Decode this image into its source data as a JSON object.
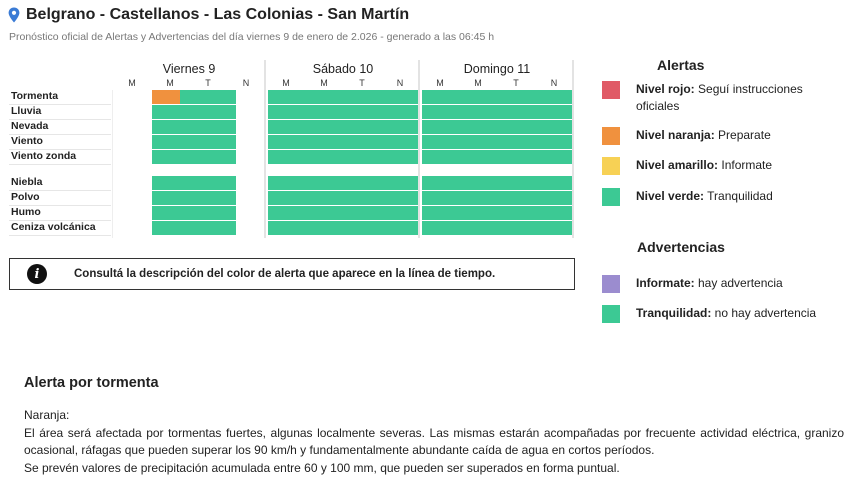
{
  "header": {
    "title": "Belgrano - Castellanos - Las Colonias - San Martín",
    "subtitle": "Pronóstico oficial de Alertas y Advertencias del día viernes 9 de enero de 2.026 - generado a las 06:45 h",
    "icon": "location-pin-icon"
  },
  "timeline": {
    "days": [
      {
        "label": "Viernes 9",
        "slots": [
          "M",
          "M",
          "T",
          "N"
        ]
      },
      {
        "label": "Sábado 10",
        "slots": [
          "M",
          "M",
          "T",
          "N"
        ]
      },
      {
        "label": "Domingo 11",
        "slots": [
          "M",
          "M",
          "T",
          "N"
        ]
      }
    ],
    "groups": [
      {
        "rows": [
          {
            "label": "Tormenta",
            "levels": [
              "naranja",
              "verde",
              "verde",
              "verde",
              "verde",
              "verde",
              "verde",
              "verde",
              "verde",
              "verde",
              "verde",
              "verde"
            ]
          },
          {
            "label": "Lluvia",
            "levels": [
              "verde",
              "verde",
              "verde",
              "verde",
              "verde",
              "verde",
              "verde",
              "verde",
              "verde",
              "verde",
              "verde",
              "verde"
            ]
          },
          {
            "label": "Nevada",
            "levels": [
              "verde",
              "verde",
              "verde",
              "verde",
              "verde",
              "verde",
              "verde",
              "verde",
              "verde",
              "verde",
              "verde",
              "verde"
            ]
          },
          {
            "label": "Viento",
            "levels": [
              "verde",
              "verde",
              "verde",
              "verde",
              "verde",
              "verde",
              "verde",
              "verde",
              "verde",
              "verde",
              "verde",
              "verde"
            ]
          },
          {
            "label": "Viento zonda",
            "levels": [
              "verde",
              "verde",
              "verde",
              "verde",
              "verde",
              "verde",
              "verde",
              "verde",
              "verde",
              "verde",
              "verde",
              "verde"
            ]
          }
        ]
      },
      {
        "rows": [
          {
            "label": "Niebla",
            "levels": [
              "verde",
              "verde",
              "verde",
              "verde",
              "verde",
              "verde",
              "verde",
              "verde",
              "verde",
              "verde",
              "verde",
              "verde"
            ]
          },
          {
            "label": "Polvo",
            "levels": [
              "verde",
              "verde",
              "verde",
              "verde",
              "verde",
              "verde",
              "verde",
              "verde",
              "verde",
              "verde",
              "verde",
              "verde"
            ]
          },
          {
            "label": "Humo",
            "levels": [
              "verde",
              "verde",
              "verde",
              "verde",
              "verde",
              "verde",
              "verde",
              "verde",
              "verde",
              "verde",
              "verde",
              "verde"
            ]
          },
          {
            "label": "Ceniza volcánica",
            "levels": [
              "verde",
              "verde",
              "verde",
              "verde",
              "verde",
              "verde",
              "verde",
              "verde",
              "verde",
              "verde",
              "verde",
              "verde"
            ]
          }
        ]
      }
    ]
  },
  "colors": {
    "rojo": "#e05a66",
    "naranja": "#f0913e",
    "amarillo": "#f7d155",
    "verde": "#3cc994",
    "informate": "#9b8ccf"
  },
  "info_box": {
    "icon": "info-icon",
    "text": "Consultá la descripción del color de alerta que aparece en la línea de tiempo."
  },
  "alertas": {
    "title": "Alertas",
    "items": [
      {
        "color": "#e05a66",
        "label": "Nivel rojo:",
        "desc": "Seguí instrucciones oficiales"
      },
      {
        "color": "#f0913e",
        "label": "Nivel naranja:",
        "desc": "Preparate"
      },
      {
        "color": "#f7d155",
        "label": "Nivel amarillo:",
        "desc": "Informate"
      },
      {
        "color": "#3cc994",
        "label": "Nivel verde:",
        "desc": "Tranquilidad"
      }
    ]
  },
  "advertencias": {
    "title": "Advertencias",
    "items": [
      {
        "color": "#9b8ccf",
        "label": "Informate:",
        "desc": "hay advertencia"
      },
      {
        "color": "#3cc994",
        "label": "Tranquilidad:",
        "desc": "no hay advertencia"
      }
    ]
  },
  "detail": {
    "title": "Alerta por tormenta",
    "level": "Naranja:",
    "paragraph1": "El área será afectada por tormentas fuertes, algunas localmente severas. Las mismas estarán acompañadas por frecuente actividad eléctrica, granizo ocasional, ráfagas que pueden superar los 90 km/h y fundamentalmente abundante caída de agua en cortos períodos.",
    "paragraph2": "Se prevén valores de precipitación acumulada entre 60 y 100 mm, que pueden ser superados en forma puntual."
  }
}
